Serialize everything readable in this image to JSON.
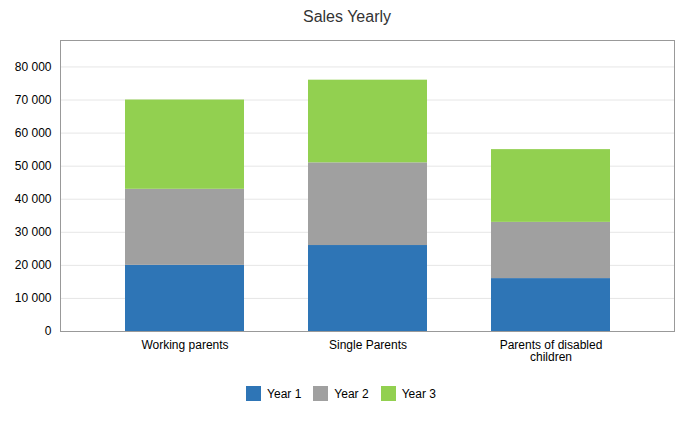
{
  "chart_data": {
    "type": "bar",
    "title": "Sales Yearly",
    "categories": [
      "Working parents",
      "Single Parents",
      "Parents of disabled\nchildren"
    ],
    "series": [
      {
        "name": "Year 1",
        "color": "#2E75B6",
        "values": [
          20000,
          26000,
          16000
        ]
      },
      {
        "name": "Year 2",
        "color": "#A0A0A0",
        "values": [
          23000,
          25000,
          17000
        ]
      },
      {
        "name": "Year 3",
        "color": "#92D050",
        "values": [
          27000,
          25000,
          22000
        ]
      }
    ],
    "stacked": true,
    "ylim": [
      0,
      88000
    ],
    "yticks": [
      0,
      {
        "value": 10000,
        "label": "10 000"
      },
      {
        "value": 20000,
        "label": "20 000"
      },
      {
        "value": 30000,
        "label": "30 000"
      },
      {
        "value": 40000,
        "label": "40 000"
      },
      {
        "value": 50000,
        "label": "50 000"
      },
      {
        "value": 60000,
        "label": "60 000"
      },
      {
        "value": 70000,
        "label": "70 000"
      },
      {
        "value": 80000,
        "label": "80 000"
      }
    ],
    "grid": true,
    "legend": "bottom"
  }
}
